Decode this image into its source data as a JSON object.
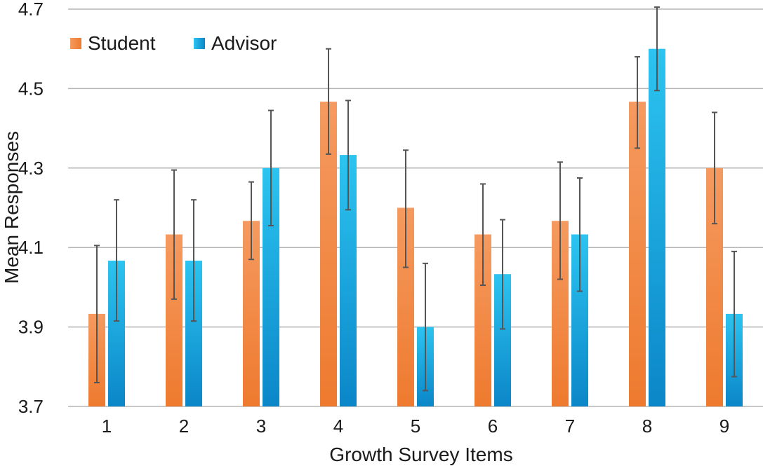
{
  "chart_data": {
    "type": "bar",
    "title": "",
    "xlabel": "Growth Survey Items",
    "ylabel": "Mean Responses",
    "categories": [
      "1",
      "2",
      "3",
      "4",
      "5",
      "6",
      "7",
      "8",
      "9"
    ],
    "ylim": [
      3.7,
      4.7
    ],
    "yticks": [
      "3.7",
      "3.9",
      "4.1",
      "4.3",
      "4.5",
      "4.7"
    ],
    "grid": true,
    "legend_position": "top-left",
    "series": [
      {
        "name": "Student",
        "color": "#ee7a2e",
        "color_light": "#f59a60",
        "values": [
          3.933,
          4.133,
          4.167,
          4.467,
          4.2,
          4.133,
          4.167,
          4.467,
          4.3
        ],
        "error_low": [
          3.76,
          3.97,
          4.07,
          4.335,
          4.05,
          4.005,
          4.02,
          4.35,
          4.16
        ],
        "error_high": [
          4.105,
          4.295,
          4.265,
          4.6,
          4.345,
          4.26,
          4.315,
          4.58,
          4.44
        ]
      },
      {
        "name": "Advisor",
        "color": "#0b86c8",
        "color_light": "#2cc4f0",
        "values": [
          4.067,
          4.067,
          4.3,
          4.333,
          3.9,
          4.033,
          4.133,
          4.6,
          3.933
        ],
        "error_low": [
          3.915,
          3.915,
          4.155,
          4.195,
          3.74,
          3.895,
          3.99,
          4.495,
          3.775
        ],
        "error_high": [
          4.22,
          4.22,
          4.445,
          4.47,
          4.06,
          4.17,
          4.275,
          4.705,
          4.09
        ]
      }
    ]
  }
}
